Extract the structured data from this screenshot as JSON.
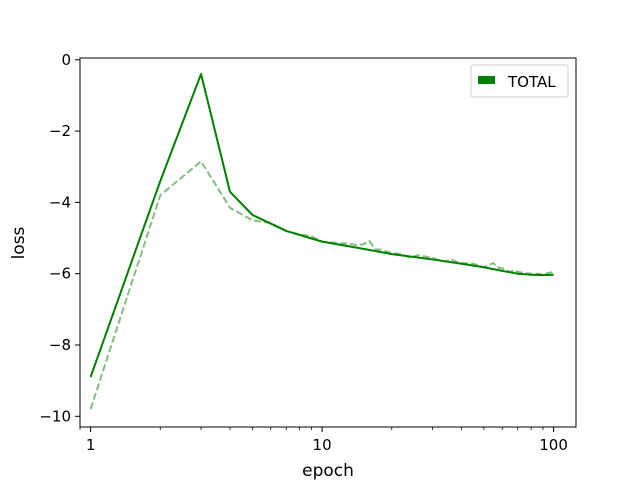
{
  "chart_data": {
    "type": "line",
    "title": "",
    "xlabel": "epoch",
    "ylabel": "loss",
    "xscale": "log",
    "xlim": [
      0.9,
      125
    ],
    "ylim": [
      -10.3,
      0.05
    ],
    "grid": false,
    "legend_placement": "top-right",
    "legend": [
      "TOTAL"
    ],
    "x_ticks": [
      1,
      10,
      100
    ],
    "x_tick_labels": [
      "1",
      "10",
      "100"
    ],
    "y_ticks": [
      0,
      -2,
      -4,
      -6,
      -8,
      -10
    ],
    "y_tick_labels": [
      "0",
      "−2",
      "−4",
      "−6",
      "−8",
      "−10"
    ],
    "series": [
      {
        "name": "TOTAL",
        "style": "solid",
        "color": "#008000",
        "x": [
          1,
          2,
          3,
          4,
          5,
          7,
          10,
          15,
          20,
          30,
          40,
          50,
          60,
          70,
          80,
          90,
          100
        ],
        "y": [
          -8.9,
          -3.4,
          -0.4,
          -3.7,
          -4.35,
          -4.8,
          -5.1,
          -5.3,
          -5.45,
          -5.6,
          -5.72,
          -5.82,
          -5.92,
          -6.0,
          -6.03,
          -6.04,
          -6.03
        ]
      },
      {
        "style": "dashed",
        "color": "#008000",
        "opacity": 0.5,
        "x": [
          1,
          2,
          3,
          4,
          5,
          6,
          7,
          8,
          9,
          10,
          11,
          12,
          13,
          14,
          15,
          16,
          17,
          18,
          19,
          20,
          22,
          24,
          26,
          28,
          30,
          32,
          34,
          36,
          38,
          40,
          45,
          50,
          55,
          57,
          60,
          65,
          68,
          70,
          75,
          80,
          85,
          90,
          95,
          100
        ],
        "y": [
          -9.8,
          -3.8,
          -2.85,
          -4.15,
          -4.5,
          -4.58,
          -4.8,
          -4.9,
          -4.95,
          -5.1,
          -5.12,
          -5.15,
          -5.15,
          -5.2,
          -5.18,
          -5.08,
          -5.32,
          -5.32,
          -5.38,
          -5.42,
          -5.45,
          -5.55,
          -5.48,
          -5.52,
          -5.55,
          -5.62,
          -5.66,
          -5.6,
          -5.66,
          -5.7,
          -5.72,
          -5.82,
          -5.7,
          -5.82,
          -5.85,
          -5.95,
          -5.9,
          -5.95,
          -5.98,
          -6.0,
          -6.0,
          -6.02,
          -5.98,
          -5.95
        ]
      }
    ]
  }
}
